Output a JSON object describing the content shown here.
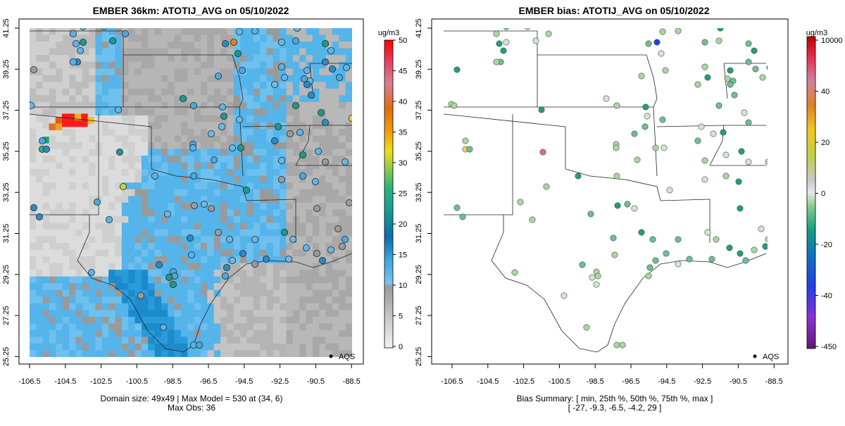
{
  "left_panel": {
    "title": "EMBER 36km: ATOTIJ_AVG on 05/10/2022",
    "colorbar_unit": "ug/m3",
    "colorbar_ticks": [
      "50",
      "45",
      "40",
      "35",
      "30",
      "25",
      "20",
      "15",
      "10",
      "5",
      "0"
    ],
    "legend_label": "AQS",
    "footer_line1": "Domain size: 49x49 | Max Model = 530 at (34, 6)",
    "footer_line2": "Max Obs: 36"
  },
  "right_panel": {
    "title": "EMBER bias: ATOTIJ_AVG on 05/10/2022",
    "colorbar_unit": "ug/m3",
    "colorbar_ticks": [
      "10000",
      "40",
      "20",
      "0",
      "-20",
      "-40",
      "-450"
    ],
    "legend_label": "AQS",
    "footer_line1": "Bias Summary: [ min, 25th %, 50th %, 75th %, max ]",
    "footer_line2": "[ -27,   -9.3,   -6.5,   -4.2,   29 ]"
  },
  "axes": {
    "x_ticks": [
      "-106.5",
      "-104.5",
      "-102.5",
      "-100.5",
      "-98.5",
      "-96.5",
      "-94.5",
      "-92.5",
      "-90.5",
      "-88.5"
    ],
    "y_ticks": [
      "41.25",
      "39.25",
      "37.25",
      "35.25",
      "33.25",
      "31.25",
      "29.25",
      "27.25",
      "25.25"
    ]
  },
  "colors": {
    "model_low": "#dcdcdc",
    "model_mid": "#a6a6a6",
    "model_blue": "#55b4ea",
    "model_dark_blue": "#1a8ccc",
    "hotspot_red": "#ff1a1a",
    "bias_marker": "#a8d8a0"
  }
}
